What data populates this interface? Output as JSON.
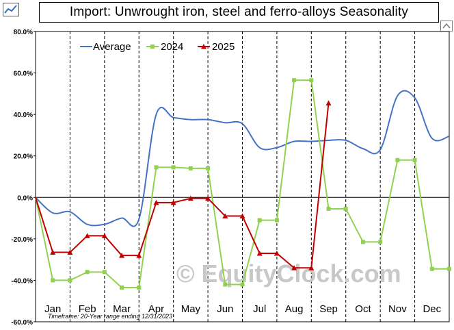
{
  "title": "Import: Unwrought iron, steel and ferro-alloys Seasonality",
  "footnote": "Timeframe: 20-Year range ending 12/31/2023",
  "watermark": "© EquityClock.com",
  "icons": {
    "top_left": "seasonal-chart-icon",
    "top_right": "expand-icon"
  },
  "colors": {
    "average": "#4472c4",
    "y2024": "#92d050",
    "y2025": "#c00000",
    "grid": "#000000"
  },
  "chart_data": {
    "type": "line",
    "title": "Import: Unwrought iron, steel and ferro-alloys Seasonality",
    "months": [
      "Jan",
      "Feb",
      "Mar",
      "Apr",
      "May",
      "Jun",
      "Jul",
      "Aug",
      "Sep",
      "Oct",
      "Nov",
      "Dec"
    ],
    "y_ticks": [
      "80.0%",
      "60.0%",
      "40.0%",
      "20.0%",
      "0.0%",
      "-20.0%",
      "-40.0%",
      "-60.0%"
    ],
    "ylim": [
      -60,
      80
    ],
    "xlim": [
      0,
      12
    ],
    "legend_position": "top-left",
    "grid": "vertical dashed lines at month boundaries",
    "series": [
      {
        "name": "Average",
        "style": "smooth-line",
        "color": "#4472c4",
        "points": [
          [
            0.0,
            0.0
          ],
          [
            0.5,
            -7.5
          ],
          [
            1.0,
            -7.0
          ],
          [
            1.5,
            -13.0
          ],
          [
            2.0,
            -13.0
          ],
          [
            2.5,
            -10.0
          ],
          [
            3.0,
            -10.5
          ],
          [
            3.5,
            40.0
          ],
          [
            4.0,
            38.5
          ],
          [
            4.5,
            37.5
          ],
          [
            5.0,
            37.5
          ],
          [
            5.5,
            36.0
          ],
          [
            6.0,
            35.5
          ],
          [
            6.5,
            24.0
          ],
          [
            7.0,
            24.0
          ],
          [
            7.5,
            27.0
          ],
          [
            8.0,
            27.0
          ],
          [
            8.5,
            27.5
          ],
          [
            9.0,
            27.5
          ],
          [
            9.5,
            23.5
          ],
          [
            10.0,
            23.0
          ],
          [
            10.5,
            49.0
          ],
          [
            11.0,
            48.0
          ],
          [
            11.5,
            28.5
          ],
          [
            12.0,
            29.5
          ]
        ]
      },
      {
        "name": "2024",
        "style": "line-markers",
        "color": "#92d050",
        "points": [
          [
            0.0,
            0.0
          ],
          [
            0.5,
            -40.0
          ],
          [
            1.0,
            -40.0
          ],
          [
            1.5,
            -36.0
          ],
          [
            2.0,
            -36.0
          ],
          [
            2.5,
            -43.5
          ],
          [
            3.0,
            -43.5
          ],
          [
            3.5,
            14.5
          ],
          [
            4.0,
            14.5
          ],
          [
            4.5,
            14.0
          ],
          [
            5.0,
            14.0
          ],
          [
            5.5,
            -42.0
          ],
          [
            6.0,
            -42.0
          ],
          [
            6.5,
            -11.0
          ],
          [
            7.0,
            -11.0
          ],
          [
            7.5,
            56.5
          ],
          [
            8.0,
            56.5
          ],
          [
            8.5,
            -5.5
          ],
          [
            9.0,
            -5.5
          ],
          [
            9.5,
            -21.5
          ],
          [
            10.0,
            -21.5
          ],
          [
            10.5,
            18.0
          ],
          [
            11.0,
            18.0
          ],
          [
            11.5,
            -34.5
          ],
          [
            12.0,
            -34.5
          ]
        ]
      },
      {
        "name": "2025",
        "style": "line-markers",
        "color": "#c00000",
        "points": [
          [
            0.0,
            0.0
          ],
          [
            0.5,
            -26.5
          ],
          [
            1.0,
            -26.5
          ],
          [
            1.5,
            -18.5
          ],
          [
            2.0,
            -18.5
          ],
          [
            2.5,
            -28.0
          ],
          [
            3.0,
            -28.0
          ],
          [
            3.5,
            -2.5
          ],
          [
            4.0,
            -2.5
          ],
          [
            4.5,
            -0.5
          ],
          [
            5.0,
            -0.5
          ],
          [
            5.5,
            -9.0
          ],
          [
            6.0,
            -9.0
          ],
          [
            6.5,
            -27.0
          ],
          [
            7.0,
            -27.0
          ],
          [
            7.5,
            -34.0
          ],
          [
            8.0,
            -34.0
          ],
          [
            8.5,
            45.5
          ]
        ]
      }
    ]
  }
}
